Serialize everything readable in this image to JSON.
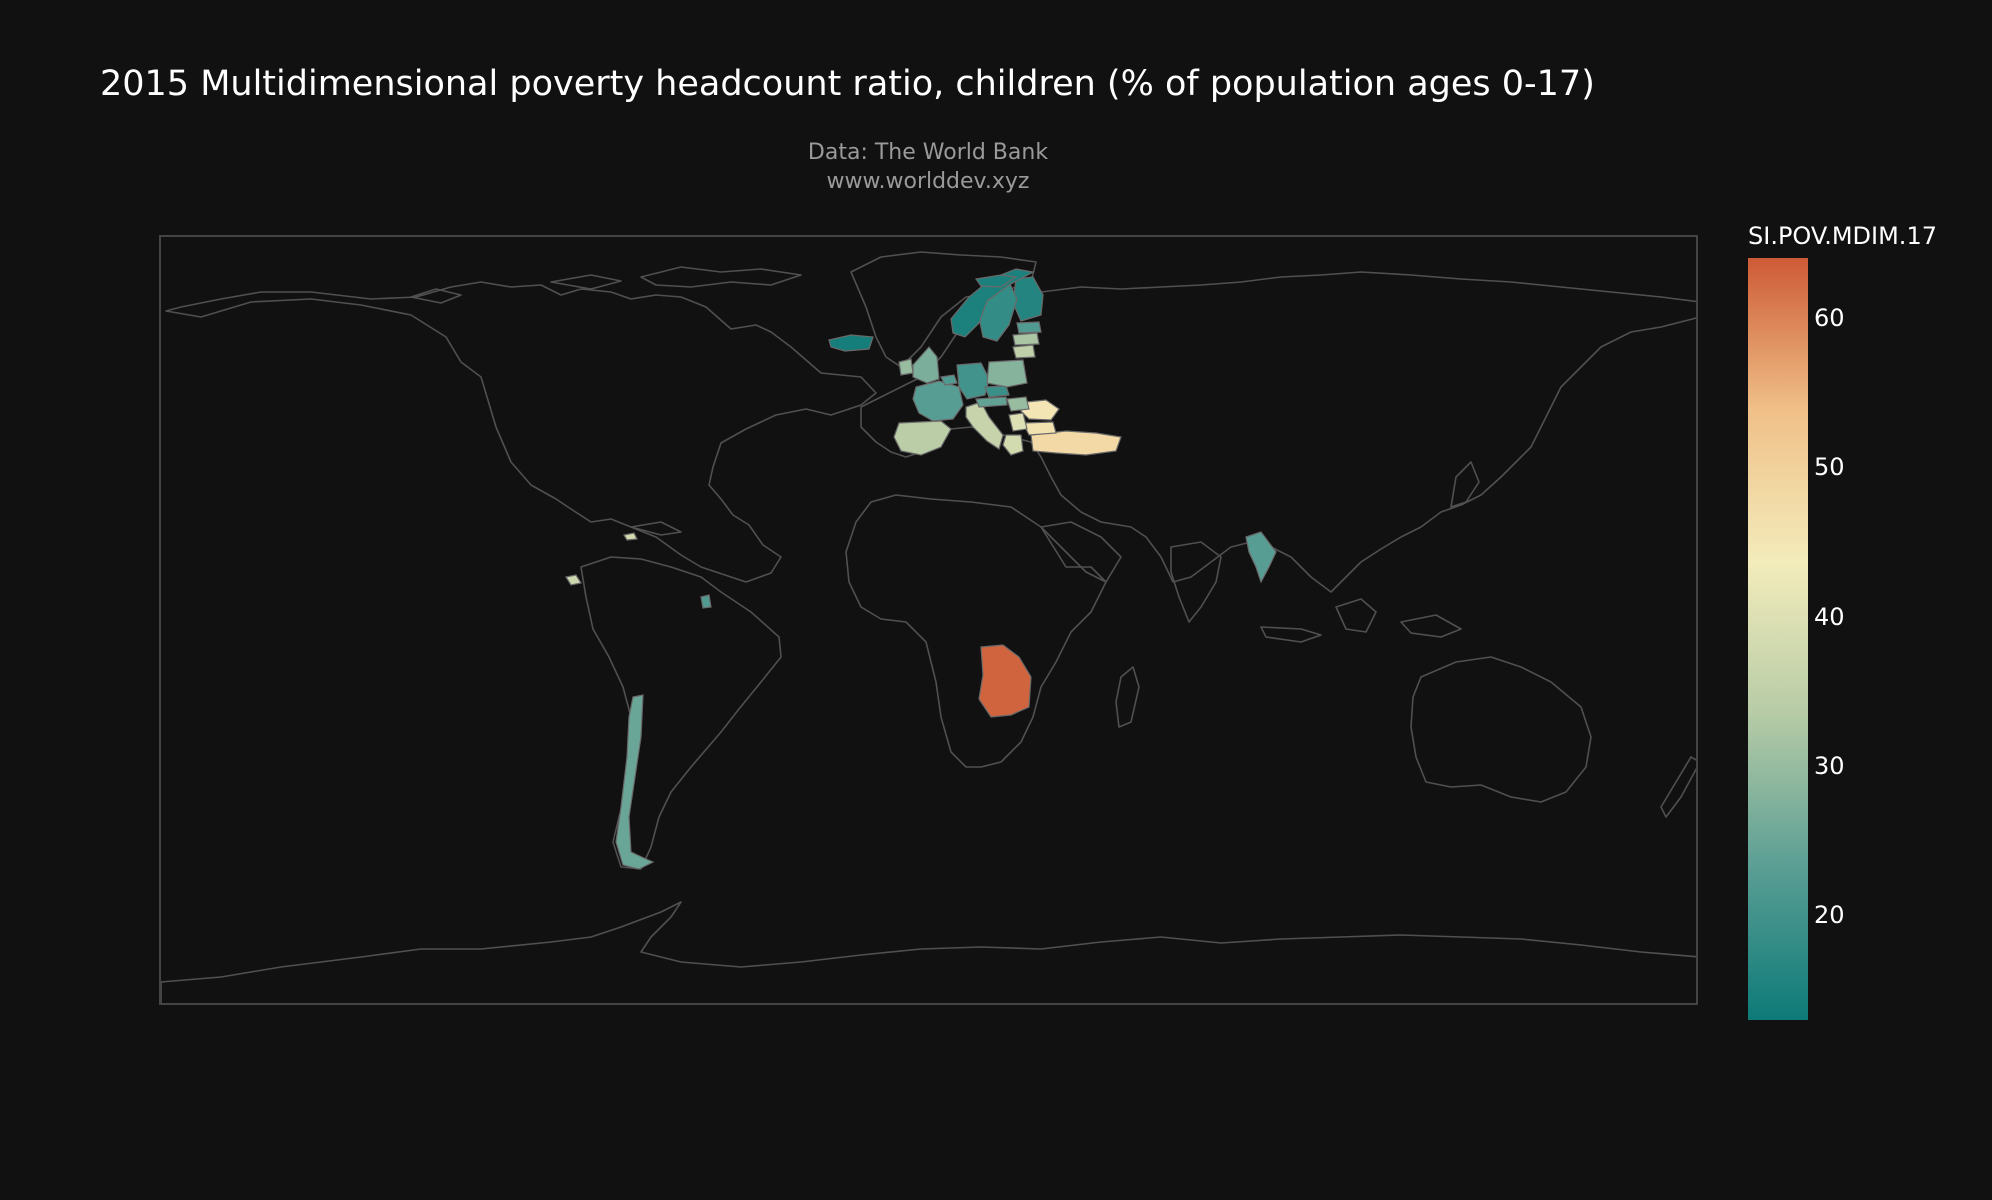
{
  "title": "2015 Multidimensional poverty headcount ratio, children (% of population ages 0-17)",
  "subtitle_line1": "Data: The World Bank",
  "subtitle_line2": "www.worlddev.xyz",
  "colorbar": {
    "title": "SI.POV.MDIM.17",
    "min": 13,
    "max": 64,
    "ticks": [
      {
        "label": "60",
        "value": 60
      },
      {
        "label": "50",
        "value": 50
      },
      {
        "label": "40",
        "value": 40
      },
      {
        "label": "30",
        "value": 30
      },
      {
        "label": "20",
        "value": 20
      }
    ],
    "colors": [
      "#0d7a78",
      "#5a9e94",
      "#b6cba6",
      "#f3ecbb",
      "#f0c088",
      "#cd5a36"
    ]
  },
  "map": {
    "projection": "equirectangular",
    "background": "#111111",
    "coastline_color": "#505050",
    "countries": [
      {
        "name": "Angola",
        "value": 63
      },
      {
        "name": "Turkey",
        "value": 48
      },
      {
        "name": "Romania",
        "value": 45
      },
      {
        "name": "Bulgaria",
        "value": 46
      },
      {
        "name": "Spain",
        "value": 34
      },
      {
        "name": "Italy",
        "value": 36
      },
      {
        "name": "Greece",
        "value": 38
      },
      {
        "name": "Serbia",
        "value": 40
      },
      {
        "name": "Hungary",
        "value": 30
      },
      {
        "name": "Poland",
        "value": 28
      },
      {
        "name": "Lithuania",
        "value": 35
      },
      {
        "name": "Latvia",
        "value": 32
      },
      {
        "name": "Ireland",
        "value": 30
      },
      {
        "name": "France",
        "value": 23
      },
      {
        "name": "Germany",
        "value": 20
      },
      {
        "name": "Belgium",
        "value": 22
      },
      {
        "name": "Austria",
        "value": 24
      },
      {
        "name": "Czech Republic",
        "value": 19
      },
      {
        "name": "Sweden",
        "value": 18
      },
      {
        "name": "Norway",
        "value": 15
      },
      {
        "name": "Finland",
        "value": 16
      },
      {
        "name": "Estonia",
        "value": 22
      },
      {
        "name": "United Kingdom",
        "value": 27
      },
      {
        "name": "Iceland",
        "value": 14
      },
      {
        "name": "Svalbard",
        "value": 15
      },
      {
        "name": "Thailand",
        "value": 23
      },
      {
        "name": "Chile",
        "value": 25
      },
      {
        "name": "Costa Rica",
        "value": 37
      },
      {
        "name": "Dominican Republic",
        "value": 38
      },
      {
        "name": "Guyana",
        "value": 22
      }
    ]
  }
}
